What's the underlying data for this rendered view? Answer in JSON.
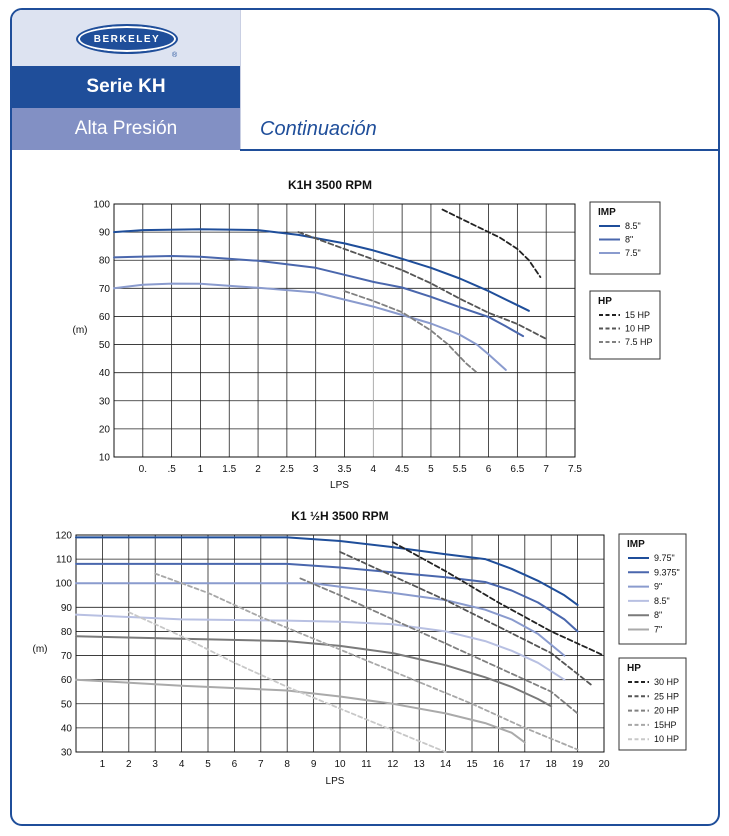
{
  "header": {
    "logo_text": "BERKELEY",
    "logo_reg": "®",
    "serie": "Serie KH",
    "subtitle": "Alta Presión",
    "continuation": "Continuación"
  },
  "colors": {
    "frame": "#1f4e9a",
    "imp": [
      "#1f4e9a",
      "#4a67ad",
      "#8a9bce",
      "#b8c0e2",
      "#7a7a7a",
      "#aaaaaa"
    ],
    "hp": [
      "#222222",
      "#555555",
      "#808080",
      "#a8a8a8",
      "#c8c8c8"
    ]
  },
  "chart_data": [
    {
      "type": "line",
      "title": "K1H 3500 RPM",
      "xlabel": "LPS",
      "ylabel": "(m)",
      "xlim": [
        -0.5,
        7.5
      ],
      "ylim": [
        10,
        100
      ],
      "xticks": [
        0,
        0.5,
        1,
        1.5,
        2,
        2.5,
        3,
        3.5,
        4,
        4.5,
        5,
        5.5,
        6,
        6.5,
        7,
        7.5
      ],
      "xtick_labels": [
        "0.",
        ".5",
        "1",
        "1.5",
        "2",
        "2.5",
        "3",
        "3.5",
        "4",
        "4.5",
        "5",
        "5.5",
        "6",
        "6.5",
        "7",
        "7.5"
      ],
      "yticks": [
        10,
        20,
        30,
        40,
        50,
        60,
        70,
        80,
        90,
        100
      ],
      "grid": true,
      "legend_imp": {
        "title": "IMP",
        "items": [
          "8.5\"",
          "8\"",
          "7.5\""
        ]
      },
      "legend_hp": {
        "title": "HP",
        "items": [
          "15 HP",
          "10 HP",
          "7.5 HP"
        ]
      },
      "series": [
        {
          "name": "8.5\"",
          "group": "imp",
          "points": [
            [
              -0.5,
              90
            ],
            [
              0,
              90.7
            ],
            [
              1,
              91
            ],
            [
              2,
              90.7
            ],
            [
              2.7,
              89
            ],
            [
              3.5,
              86
            ],
            [
              4,
              83.5
            ],
            [
              4.5,
              80.5
            ],
            [
              5,
              77.3
            ],
            [
              5.5,
              73.5
            ],
            [
              6,
              69
            ],
            [
              6.5,
              64
            ],
            [
              6.7,
              62
            ]
          ]
        },
        {
          "name": "8\"",
          "group": "imp",
          "points": [
            [
              -0.5,
              81
            ],
            [
              0,
              81.3
            ],
            [
              0.5,
              81.5
            ],
            [
              1,
              81.2
            ],
            [
              2,
              79.8
            ],
            [
              3,
              77.3
            ],
            [
              3.5,
              74.8
            ],
            [
              4,
              72.3
            ],
            [
              4.5,
              70.3
            ],
            [
              5,
              67
            ],
            [
              5.5,
              63.3
            ],
            [
              6,
              59.8
            ],
            [
              6.3,
              56.5
            ],
            [
              6.6,
              53
            ]
          ]
        },
        {
          "name": "7.5\"",
          "group": "imp",
          "points": [
            [
              -0.5,
              70
            ],
            [
              0,
              71.3
            ],
            [
              0.5,
              71.7
            ],
            [
              1,
              71.6
            ],
            [
              2,
              70.2
            ],
            [
              3,
              68.5
            ],
            [
              3.5,
              66
            ],
            [
              4,
              63.5
            ],
            [
              4.5,
              60.5
            ],
            [
              5,
              57.5
            ],
            [
              5.5,
              53.5
            ],
            [
              5.8,
              50
            ],
            [
              6,
              46.5
            ],
            [
              6.3,
              41
            ]
          ]
        },
        {
          "name": "15 HP",
          "group": "hp",
          "points": [
            [
              5.2,
              98
            ],
            [
              5.8,
              92
            ],
            [
              6.2,
              88
            ],
            [
              6.5,
              84
            ],
            [
              6.7,
              80
            ],
            [
              6.9,
              74
            ]
          ]
        },
        {
          "name": "10 HP",
          "group": "hp",
          "points": [
            [
              2.7,
              90
            ],
            [
              3.5,
              84
            ],
            [
              4,
              80.3
            ],
            [
              4.5,
              76.5
            ],
            [
              5,
              71.8
            ],
            [
              5.5,
              66.3
            ],
            [
              6,
              61.3
            ],
            [
              6.5,
              57.3
            ],
            [
              7,
              52
            ]
          ]
        },
        {
          "name": "7.5 HP",
          "group": "hp",
          "points": [
            [
              3.5,
              69
            ],
            [
              4,
              65.5
            ],
            [
              4.5,
              61.5
            ],
            [
              5,
              55
            ],
            [
              5.3,
              50
            ],
            [
              5.6,
              43.5
            ],
            [
              5.8,
              40
            ]
          ]
        }
      ]
    },
    {
      "type": "line",
      "title": "K1 ½H 3500 RPM",
      "xlabel": "LPS",
      "ylabel": "(m)",
      "xlim": [
        0,
        20
      ],
      "ylim": [
        30,
        120
      ],
      "xticks": [
        1,
        2,
        3,
        4,
        5,
        6,
        7,
        8,
        9,
        10,
        11,
        12,
        13,
        14,
        15,
        16,
        17,
        18,
        19,
        20
      ],
      "xtick_labels": [
        "1",
        "2",
        "3",
        "4",
        "5",
        "6",
        "7",
        "8",
        "9",
        "10",
        "11",
        "12",
        "13",
        "14",
        "15",
        "16",
        "17",
        "18",
        "19",
        "20"
      ],
      "yticks": [
        30,
        40,
        50,
        60,
        70,
        80,
        90,
        100,
        110,
        120
      ],
      "grid": true,
      "legend_imp": {
        "title": "IMP",
        "items": [
          "9.75\"",
          "9.375\"",
          "9\"",
          "8.5\"",
          "8\"",
          "7\""
        ]
      },
      "legend_hp": {
        "title": "HP",
        "items": [
          "30 HP",
          "25 HP",
          "20 HP",
          "15HP",
          "10 HP"
        ]
      },
      "series": [
        {
          "name": "9.75\"",
          "group": "imp",
          "points": [
            [
              0,
              119
            ],
            [
              8,
              119
            ],
            [
              10,
              117.5
            ],
            [
              12,
              115
            ],
            [
              14,
              112
            ],
            [
              15.5,
              110
            ],
            [
              16.5,
              106
            ],
            [
              17.5,
              101
            ],
            [
              18.5,
              95
            ],
            [
              19,
              91
            ]
          ]
        },
        {
          "name": "9.375\"",
          "group": "imp",
          "points": [
            [
              0,
              108
            ],
            [
              8,
              108
            ],
            [
              10,
              106.5
            ],
            [
              12,
              104.5
            ],
            [
              14,
              102.5
            ],
            [
              15.5,
              100.5
            ],
            [
              16.5,
              97
            ],
            [
              17.5,
              92
            ],
            [
              18.5,
              85
            ],
            [
              19,
              80
            ]
          ]
        },
        {
          "name": "9\"",
          "group": "imp",
          "points": [
            [
              0,
              100
            ],
            [
              9,
              100
            ],
            [
              10,
              98.5
            ],
            [
              12,
              96
            ],
            [
              14,
              93
            ],
            [
              15.5,
              89
            ],
            [
              16.5,
              85
            ],
            [
              17.5,
              79
            ],
            [
              18.5,
              70
            ]
          ]
        },
        {
          "name": "8.5\"",
          "group": "imp",
          "points": [
            [
              0,
              87
            ],
            [
              4,
              85
            ],
            [
              8,
              84.5
            ],
            [
              10,
              84
            ],
            [
              12,
              83
            ],
            [
              14,
              80
            ],
            [
              15.5,
              76
            ],
            [
              16.5,
              72
            ],
            [
              17.5,
              67
            ],
            [
              18.5,
              60
            ]
          ]
        },
        {
          "name": "8\"",
          "group": "imp",
          "points": [
            [
              0,
              78
            ],
            [
              4,
              77
            ],
            [
              8,
              76
            ],
            [
              10,
              74
            ],
            [
              12,
              71
            ],
            [
              14,
              66
            ],
            [
              15.5,
              61
            ],
            [
              16.5,
              57
            ],
            [
              17.5,
              52
            ],
            [
              18,
              49
            ]
          ]
        },
        {
          "name": "7\"",
          "group": "imp",
          "points": [
            [
              0,
              60
            ],
            [
              4,
              57.5
            ],
            [
              8,
              55.5
            ],
            [
              10,
              53
            ],
            [
              12,
              50
            ],
            [
              14,
              46
            ],
            [
              15.5,
              42
            ],
            [
              16.5,
              38
            ],
            [
              17,
              34
            ]
          ]
        },
        {
          "name": "30 HP",
          "group": "hp",
          "points": [
            [
              12,
              117
            ],
            [
              14,
              105
            ],
            [
              16,
              92
            ],
            [
              18,
              80
            ],
            [
              20,
              70
            ]
          ]
        },
        {
          "name": "25 HP",
          "group": "hp",
          "points": [
            [
              10,
              113
            ],
            [
              12,
              103
            ],
            [
              14,
              93
            ],
            [
              16,
              82
            ],
            [
              18,
              71
            ],
            [
              19.5,
              58
            ]
          ]
        },
        {
          "name": "20 HP",
          "group": "hp",
          "points": [
            [
              8.5,
              102
            ],
            [
              10,
              95
            ],
            [
              12,
              85
            ],
            [
              14,
              75
            ],
            [
              16,
              65
            ],
            [
              18,
              55
            ],
            [
              19,
              46
            ]
          ]
        },
        {
          "name": "15HP",
          "group": "hp",
          "points": [
            [
              3,
              104
            ],
            [
              5,
              96
            ],
            [
              7,
              86
            ],
            [
              9,
              77
            ],
            [
              11,
              68
            ],
            [
              13,
              59
            ],
            [
              15,
              50
            ],
            [
              17,
              40
            ],
            [
              19,
              31
            ]
          ]
        },
        {
          "name": "10 HP",
          "group": "hp",
          "points": [
            [
              2,
              88
            ],
            [
              4,
              78
            ],
            [
              6,
              67
            ],
            [
              8,
              57
            ],
            [
              10,
              48
            ],
            [
              12,
              39
            ],
            [
              14,
              30
            ]
          ]
        }
      ]
    }
  ]
}
